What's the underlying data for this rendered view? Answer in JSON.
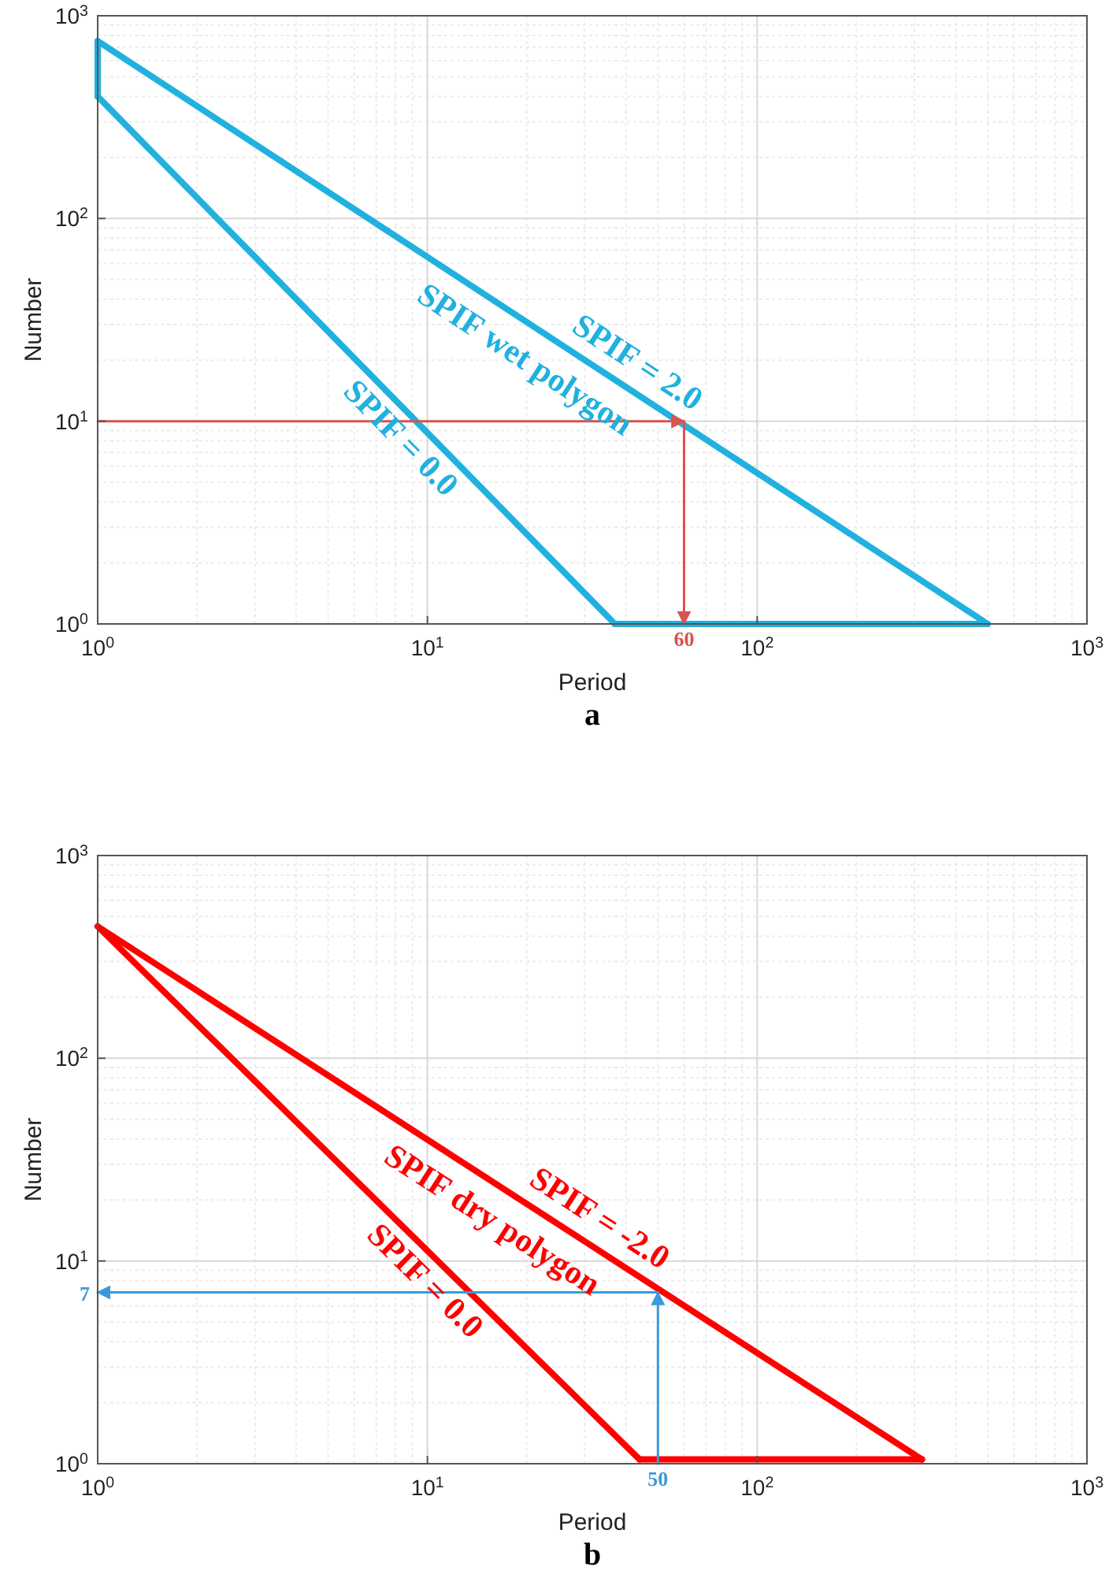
{
  "chart_data": [
    {
      "type": "line",
      "title": "a",
      "xlabel": "Period",
      "ylabel": "Number",
      "log": "xy",
      "grid": true,
      "xlim": [
        1,
        1000
      ],
      "ylim": [
        1,
        1000
      ],
      "xticks": [
        {
          "value": 1,
          "label": "10$^{0}$"
        },
        {
          "value": 10,
          "label": "10$^{1}$"
        },
        {
          "value": 100,
          "label": "10$^{2}$"
        },
        {
          "value": 1000,
          "label": "10$^{3}$"
        }
      ],
      "yticks": [
        {
          "value": 1,
          "label": "10$^{0}$"
        },
        {
          "value": 10,
          "label": "10$^{1}$"
        },
        {
          "value": 100,
          "label": "10$^{2}$"
        },
        {
          "value": 1000,
          "label": "10$^{3}$"
        }
      ],
      "series": [
        {
          "color": "#21b1df",
          "x": [
            1,
            500
          ],
          "values": [
            750,
            1
          ]
        },
        {
          "color": "#21b1df",
          "x": [
            1,
            37
          ],
          "values": [
            400,
            1
          ]
        },
        {
          "color": "#21b1df",
          "x": [
            37,
            500
          ],
          "values": [
            1,
            1
          ]
        },
        {
          "color": "#21b1df",
          "x": [
            1,
            1
          ],
          "values": [
            400,
            750
          ]
        },
        {
          "color": "#d9534f",
          "x": [
            1,
            60
          ],
          "values": [
            10,
            10
          ]
        },
        {
          "color": "#d9534f",
          "x": [
            60,
            60
          ],
          "values": [
            10,
            1
          ]
        }
      ],
      "annotations": [
        {
          "text": "SPIF = 2.0",
          "x": 39,
          "y": 15
        },
        "SPIF wet polygon",
        {
          "text": "SPIF = 0.0",
          "x": 9.3,
          "y": 9.9
        },
        {
          "text": "60",
          "x": 60,
          "y": 1
        }
      ]
    },
    {
      "type": "line",
      "title": "b",
      "xlabel": "Period",
      "ylabel": "Number",
      "log": "xy",
      "grid": true,
      "xlim": [
        1,
        1000
      ],
      "ylim": [
        1,
        1000
      ],
      "xticks": [
        {
          "value": 1,
          "label": "10$^{0}$"
        },
        {
          "value": 10,
          "label": "10$^{1}$"
        },
        {
          "value": 100,
          "label": "10$^{2}$"
        },
        {
          "value": 1000,
          "label": "10$^{3}$"
        }
      ],
      "yticks": [
        {
          "value": 1,
          "label": "10$^{0}$"
        },
        {
          "value": 10,
          "label": "10$^{1}$"
        },
        {
          "value": 100,
          "label": "10$^{2}$"
        },
        {
          "value": 1000,
          "label": "10$^{3}$"
        }
      ],
      "series": [
        {
          "color": "#ff0000",
          "x": [
            1,
            316
          ],
          "values": [
            447,
            1.05
          ]
        },
        {
          "color": "#ff0000",
          "x": [
            1,
            44
          ],
          "values": [
            447,
            1.05
          ]
        },
        {
          "color": "#ff0000",
          "x": [
            44,
            316
          ],
          "values": [
            1.05,
            1.05
          ]
        },
        {
          "color": "#3a9ad9",
          "x": [
            50,
            50
          ],
          "values": [
            1,
            7
          ]
        },
        {
          "color": "#3a9ad9",
          "x": [
            50,
            1
          ],
          "values": [
            7,
            7
          ]
        }
      ],
      "annotations": [
        {
          "text": "SPIF = -2.0",
          "x": 30,
          "y": 12.5
        },
        "SPIF dry polygon",
        {
          "text": "SPIF = 0.0",
          "x": 11,
          "y": 9.6
        },
        {
          "text": "7",
          "x": 1,
          "y": 7
        },
        {
          "text": "50",
          "x": 50,
          "y": 1
        }
      ]
    }
  ]
}
